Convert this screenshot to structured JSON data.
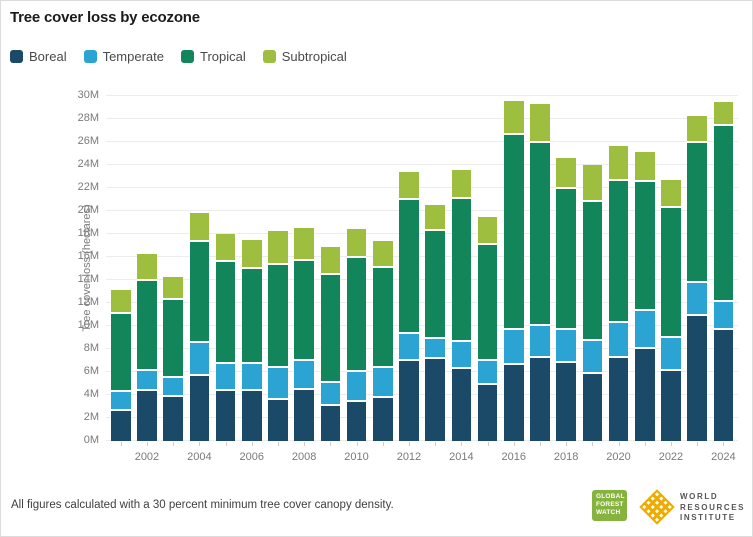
{
  "header": {
    "title": "Tree cover loss by ecozone"
  },
  "colors": {
    "boreal": "#1B4A68",
    "temperate": "#2BA4D3",
    "tropical": "#12855A",
    "subtropical": "#9EBE3F",
    "gfw_green": "#86B23E",
    "wri_gold": "#F0AB00"
  },
  "chart_data": {
    "type": "bar",
    "stacked": true,
    "title": "Tree cover loss by ecozone",
    "xlabel": "",
    "ylabel": "Tree cover loss (hectares)",
    "ylim": [
      0,
      30000000
    ],
    "grid": true,
    "legend_position": "top-left",
    "categories": [
      "2001",
      "2002",
      "2003",
      "2004",
      "2005",
      "2006",
      "2007",
      "2008",
      "2009",
      "2010",
      "2011",
      "2012",
      "2013",
      "2014",
      "2015",
      "2016",
      "2017",
      "2018",
      "2019",
      "2020",
      "2021",
      "2022",
      "2023",
      "2024"
    ],
    "series": [
      {
        "name": "Boreal",
        "color_key": "boreal",
        "values_M": [
          2.8,
          4.5,
          4.0,
          5.85,
          4.5,
          4.5,
          3.7,
          4.6,
          3.2,
          3.6,
          3.9,
          7.1,
          7.3,
          6.45,
          5.05,
          6.75,
          7.35,
          7.0,
          6.0,
          7.35,
          8.2,
          6.3,
          11.05,
          9.85
        ]
      },
      {
        "name": "Temperate",
        "color_key": "temperate",
        "values_M": [
          1.65,
          1.8,
          1.65,
          2.85,
          2.4,
          2.4,
          2.8,
          2.5,
          2.0,
          2.6,
          2.6,
          2.4,
          1.75,
          2.3,
          2.05,
          3.1,
          2.8,
          2.8,
          2.85,
          3.1,
          3.25,
          2.85,
          2.85,
          2.45
        ]
      },
      {
        "name": "Tropical",
        "color_key": "tropical",
        "values_M": [
          6.75,
          7.8,
          6.75,
          8.8,
          8.8,
          8.2,
          9.0,
          8.75,
          9.45,
          9.9,
          8.7,
          11.6,
          9.35,
          12.45,
          10.15,
          16.95,
          15.95,
          12.3,
          12.1,
          12.3,
          11.25,
          11.3,
          12.2,
          15.3
        ]
      },
      {
        "name": "Subtropical",
        "color_key": "subtropical",
        "values_M": [
          1.9,
          2.2,
          1.9,
          2.3,
          2.3,
          2.4,
          2.75,
          2.7,
          2.25,
          2.3,
          2.2,
          2.3,
          2.1,
          2.35,
          2.2,
          2.75,
          3.2,
          2.5,
          3.05,
          2.9,
          2.45,
          2.25,
          2.15,
          1.9
        ]
      }
    ],
    "y_ticks": [
      "0M",
      "2M",
      "4M",
      "6M",
      "8M",
      "10M",
      "12M",
      "14M",
      "16M",
      "18M",
      "20M",
      "22M",
      "24M",
      "26M",
      "28M",
      "30M"
    ],
    "x_ticks": [
      "2002",
      "2004",
      "2006",
      "2008",
      "2010",
      "2012",
      "2014",
      "2016",
      "2018",
      "2020",
      "2022",
      "2024"
    ]
  },
  "footer": {
    "note": "All figures calculated with a 30 percent minimum tree cover canopy density."
  },
  "logos": {
    "gfw_lines": [
      "GLOBAL",
      "FOREST",
      "WATCH"
    ],
    "wri_lines": [
      "WORLD",
      "RESOURCES",
      "INSTITUTE"
    ]
  }
}
